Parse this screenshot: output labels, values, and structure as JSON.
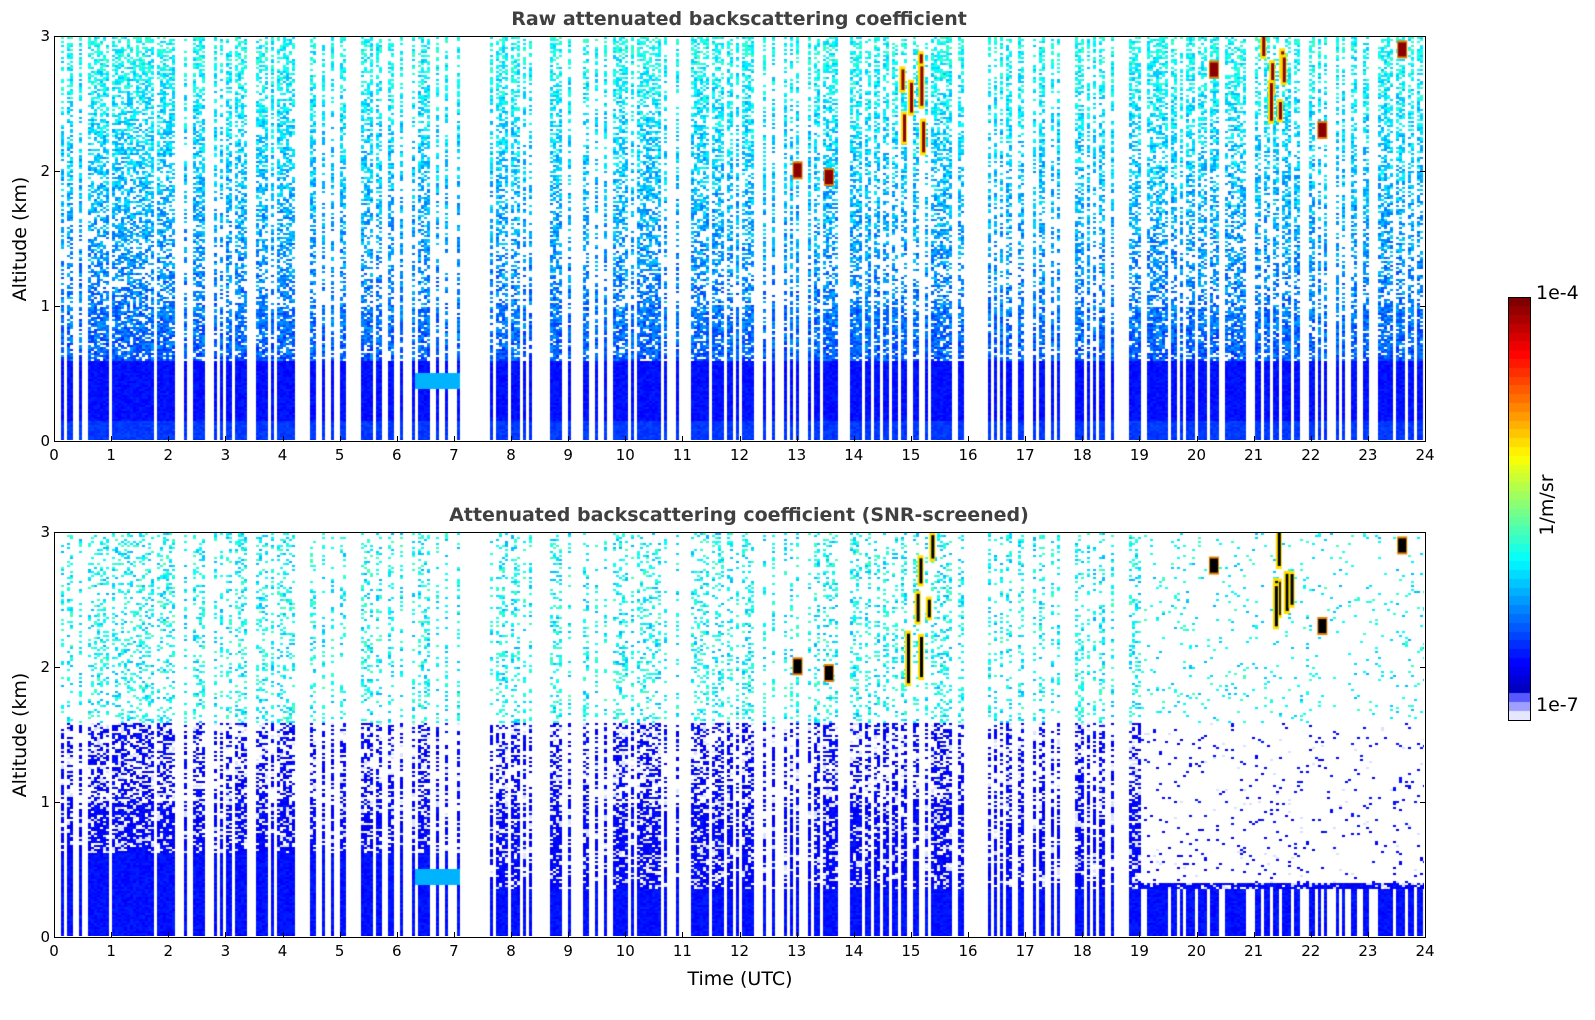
{
  "chart_data": [
    {
      "type": "heatmap",
      "title": "Raw attenuated backscattering coefficient",
      "xlabel": "",
      "ylabel": "Altitude (km)",
      "xlim": [
        0,
        24
      ],
      "ylim": [
        0,
        3
      ],
      "x_ticks": [
        "0",
        "1",
        "2",
        "3",
        "4",
        "5",
        "6",
        "7",
        "8",
        "9",
        "10",
        "11",
        "12",
        "13",
        "14",
        "15",
        "16",
        "17",
        "18",
        "19",
        "20",
        "21",
        "22",
        "23",
        "24"
      ],
      "y_ticks": [
        "0",
        "1",
        "2",
        "3"
      ],
      "data_gap_hours": [
        7.08,
        7.6
      ],
      "boundary_layer_top_km": 0.65,
      "features": [
        {
          "description": "cloud patches",
          "time_h": 13.0,
          "altitude_km": 2.0
        },
        {
          "description": "cloud patches",
          "time_h": 13.55,
          "altitude_km": 1.95
        },
        {
          "description": "vertical cloud streaks",
          "time_h": 15.1,
          "altitude_km_range": [
            2.0,
            3.0
          ]
        },
        {
          "description": "cloud patches",
          "time_h": 20.3,
          "altitude_km": 2.75
        },
        {
          "description": "cloud streaks",
          "time_h": 21.4,
          "altitude_km_range": [
            2.3,
            3.0
          ]
        },
        {
          "description": "cloud patches",
          "time_h": 22.2,
          "altitude_km": 2.3
        },
        {
          "description": "cloud patches",
          "time_h": 23.6,
          "altitude_km": 2.9
        }
      ]
    },
    {
      "type": "heatmap",
      "title": "Attenuated backscattering coefficient (SNR-screened)",
      "xlabel": "Time (UTC)",
      "ylabel": "Altitude (km)",
      "xlim": [
        0,
        24
      ],
      "ylim": [
        0,
        3
      ],
      "x_ticks": [
        "0",
        "1",
        "2",
        "3",
        "4",
        "5",
        "6",
        "7",
        "8",
        "9",
        "10",
        "11",
        "12",
        "13",
        "14",
        "15",
        "16",
        "17",
        "18",
        "19",
        "20",
        "21",
        "22",
        "23",
        "24"
      ],
      "y_ticks": [
        "0",
        "1",
        "2",
        "3"
      ],
      "data_gap_hours": [
        7.08,
        7.6
      ],
      "screened_floor_km": 0.35
    }
  ],
  "colorbar": {
    "label": "1/m/sr",
    "max_label": "1e-4",
    "min_label": "1e-7",
    "scale": "log",
    "range": [
      1e-07,
      0.0001
    ],
    "colormap": "jet (low end lightened)"
  }
}
